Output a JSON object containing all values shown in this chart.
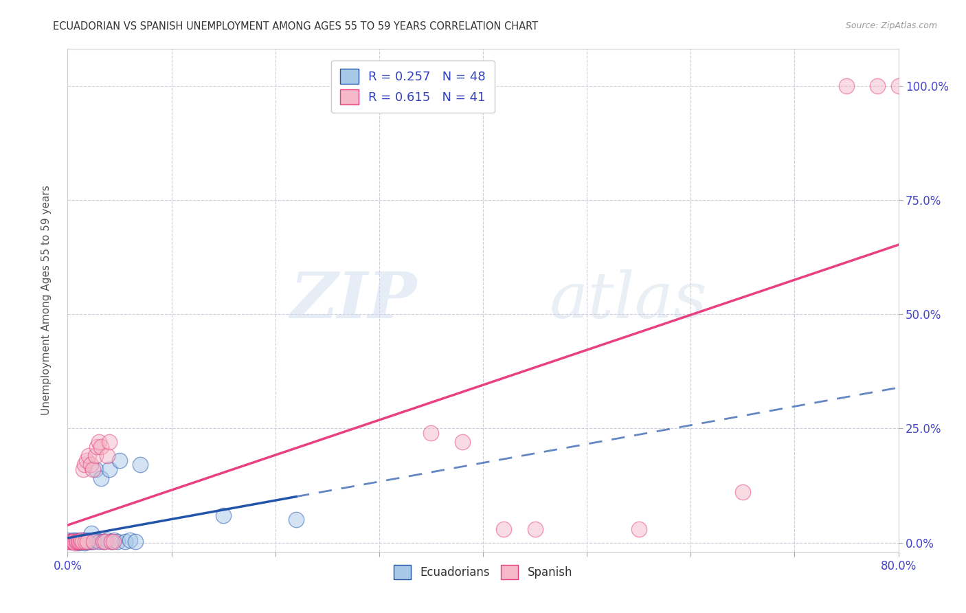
{
  "title": "ECUADORIAN VS SPANISH UNEMPLOYMENT AMONG AGES 55 TO 59 YEARS CORRELATION CHART",
  "source": "Source: ZipAtlas.com",
  "ylabel_label": "Unemployment Among Ages 55 to 59 years",
  "legend_entry1": "R = 0.257   N = 48",
  "legend_entry2": "R = 0.615   N = 41",
  "legend_label1": "Ecuadorians",
  "legend_label2": "Spanish",
  "color_blue": "#a8c8e8",
  "color_pink": "#f4b8c8",
  "color_blue_line": "#2255aa",
  "color_pink_line": "#e84080",
  "xlim": [
    0.0,
    0.8
  ],
  "ylim": [
    -0.02,
    1.08
  ],
  "ecu_x": [
    0.0,
    0.002,
    0.003,
    0.004,
    0.005,
    0.006,
    0.007,
    0.008,
    0.008,
    0.009,
    0.01,
    0.01,
    0.011,
    0.012,
    0.012,
    0.013,
    0.014,
    0.015,
    0.015,
    0.016,
    0.016,
    0.017,
    0.018,
    0.018,
    0.019,
    0.02,
    0.021,
    0.022,
    0.023,
    0.024,
    0.025,
    0.027,
    0.028,
    0.03,
    0.032,
    0.035,
    0.038,
    0.04,
    0.042,
    0.045,
    0.048,
    0.05,
    0.055,
    0.06,
    0.065,
    0.07,
    0.15,
    0.22
  ],
  "ecu_y": [
    0.005,
    0.002,
    0.003,
    0.002,
    0.005,
    0.003,
    0.002,
    0.005,
    0.003,
    0.002,
    0.0,
    0.003,
    0.002,
    0.005,
    0.002,
    0.003,
    0.002,
    0.005,
    0.003,
    0.0,
    0.005,
    0.003,
    0.002,
    0.005,
    0.003,
    0.005,
    0.002,
    0.003,
    0.02,
    0.003,
    0.005,
    0.16,
    0.005,
    0.003,
    0.14,
    0.003,
    0.005,
    0.16,
    0.003,
    0.005,
    0.003,
    0.18,
    0.003,
    0.005,
    0.003,
    0.17,
    0.06,
    0.05
  ],
  "spa_x": [
    0.0,
    0.002,
    0.004,
    0.005,
    0.006,
    0.007,
    0.008,
    0.009,
    0.01,
    0.011,
    0.012,
    0.013,
    0.014,
    0.015,
    0.016,
    0.017,
    0.018,
    0.019,
    0.02,
    0.022,
    0.024,
    0.025,
    0.027,
    0.028,
    0.03,
    0.032,
    0.034,
    0.036,
    0.038,
    0.04,
    0.042,
    0.044,
    0.35,
    0.38,
    0.42,
    0.45,
    0.55,
    0.65,
    0.75,
    0.78,
    0.8
  ],
  "spa_y": [
    0.003,
    0.002,
    0.003,
    0.002,
    0.003,
    0.0,
    0.002,
    0.003,
    0.002,
    0.003,
    0.002,
    0.005,
    0.003,
    0.16,
    0.17,
    0.002,
    0.18,
    0.003,
    0.19,
    0.17,
    0.16,
    0.002,
    0.19,
    0.21,
    0.22,
    0.21,
    0.003,
    0.002,
    0.19,
    0.22,
    0.003,
    0.002,
    0.24,
    0.22,
    0.03,
    0.03,
    0.03,
    0.11,
    1.0,
    1.0,
    1.0
  ],
  "watermark_zip": "ZIP",
  "watermark_atlas": "atlas",
  "grid_color": "#ccccdd",
  "background_color": "#ffffff",
  "tick_color": "#4444cc",
  "ylabel_color": "#555555",
  "title_color": "#333333",
  "source_color": "#999999"
}
